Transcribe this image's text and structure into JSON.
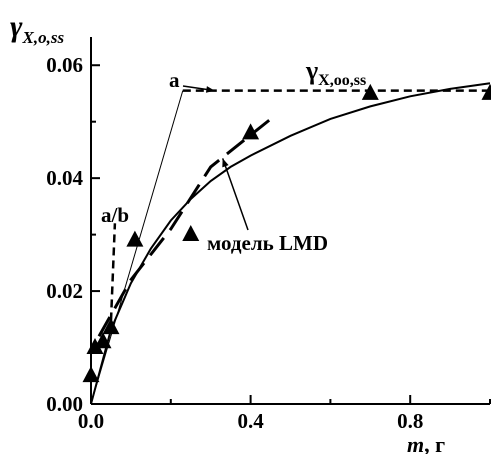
{
  "chart_data": {
    "type": "scatter",
    "grid": false,
    "xlim": [
      0,
      1.0
    ],
    "ylim": [
      0,
      0.065
    ],
    "x_ticks": [
      0.0,
      0.4,
      0.8
    ],
    "x_tick_labels": [
      "0.0",
      "0.4",
      "0.8"
    ],
    "x_minor_ticks": [
      0.2,
      0.6,
      1.0
    ],
    "y_ticks": [
      0.0,
      0.02,
      0.04,
      0.06
    ],
    "y_tick_labels": [
      "0.00",
      "0.02",
      "0.04",
      "0.06"
    ],
    "y_minor_ticks": [
      0.01,
      0.03,
      0.05
    ],
    "xlabel": {
      "symbol": "m",
      "unit": ", г"
    },
    "ylabel": {
      "symbol": "γ",
      "subscript": "X,o,ss"
    },
    "series": [
      {
        "kind": "markers",
        "marker": "triangle",
        "points": [
          {
            "x": 0.0,
            "y": 0.005
          },
          {
            "x": 0.01,
            "y": 0.01
          },
          {
            "x": 0.03,
            "y": 0.011
          },
          {
            "x": 0.05,
            "y": 0.0135
          },
          {
            "x": 0.11,
            "y": 0.029
          },
          {
            "x": 0.25,
            "y": 0.03
          },
          {
            "x": 0.4,
            "y": 0.048
          },
          {
            "x": 0.7,
            "y": 0.055
          },
          {
            "x": 1.0,
            "y": 0.055
          }
        ]
      },
      {
        "kind": "fit-curve",
        "style": "solid",
        "label": "модель LMD",
        "points": [
          {
            "x": 0.0,
            "y": 0.0
          },
          {
            "x": 0.05,
            "y": 0.0132
          },
          {
            "x": 0.1,
            "y": 0.0214
          },
          {
            "x": 0.15,
            "y": 0.0275
          },
          {
            "x": 0.2,
            "y": 0.0325
          },
          {
            "x": 0.25,
            "y": 0.0363
          },
          {
            "x": 0.3,
            "y": 0.0395
          },
          {
            "x": 0.35,
            "y": 0.042
          },
          {
            "x": 0.4,
            "y": 0.044
          },
          {
            "x": 0.5,
            "y": 0.0475
          },
          {
            "x": 0.6,
            "y": 0.0505
          },
          {
            "x": 0.7,
            "y": 0.0527
          },
          {
            "x": 0.8,
            "y": 0.0545
          },
          {
            "x": 0.9,
            "y": 0.0558
          },
          {
            "x": 1.0,
            "y": 0.0568
          }
        ]
      },
      {
        "kind": "tangent-line",
        "style": "thin",
        "label": "a",
        "points": [
          {
            "x": 0.0,
            "y": 0.0
          },
          {
            "x": 0.23,
            "y": 0.0555
          }
        ]
      },
      {
        "kind": "plateau",
        "style": "dashed",
        "label": "γX,oo,ss",
        "points": [
          {
            "x": 0.23,
            "y": 0.0555
          },
          {
            "x": 1.0,
            "y": 0.0555
          }
        ]
      },
      {
        "kind": "initial-slope",
        "style": "dashed",
        "label": "a/b",
        "points": [
          {
            "x": 0.05,
            "y": 0.0148
          },
          {
            "x": 0.06,
            "y": 0.032
          }
        ]
      },
      {
        "kind": "trend",
        "style": "long-dash",
        "points": [
          {
            "x": 0.02,
            "y": 0.012
          },
          {
            "x": 0.1,
            "y": 0.022
          },
          {
            "x": 0.2,
            "y": 0.031
          },
          {
            "x": 0.3,
            "y": 0.042
          },
          {
            "x": 0.46,
            "y": 0.051
          }
        ]
      }
    ],
    "annotations": [
      {
        "text": "a",
        "anchor": {
          "x": 0.31,
          "y": 0.0555
        }
      },
      {
        "text": "a/b",
        "anchor": {
          "x": 0.06,
          "y": 0.032
        }
      },
      {
        "text": "модель LMD",
        "anchor": {
          "x": 0.33,
          "y": 0.0435
        }
      },
      {
        "text_main": "γ",
        "text_sub": "X,oo,ss",
        "anchor": {
          "x": 0.75,
          "y": 0.058
        }
      }
    ]
  }
}
